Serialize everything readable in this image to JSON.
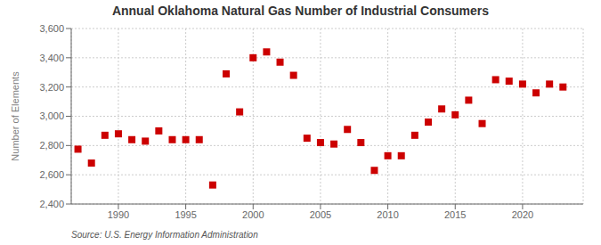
{
  "chart_data": {
    "type": "scatter",
    "title": "Annual Oklahoma Natural Gas Number of Industrial Consumers",
    "y_label": "Number of Elements",
    "annotation": "Source: U.S. Energy Information Administration",
    "x": [
      1987,
      1988,
      1989,
      1990,
      1991,
      1992,
      1993,
      1994,
      1995,
      1996,
      1997,
      1998,
      1999,
      2000,
      2001,
      2002,
      2003,
      2004,
      2005,
      2006,
      2007,
      2008,
      2009,
      2010,
      2011,
      2012,
      2013,
      2014,
      2015,
      2016,
      2017,
      2018,
      2019,
      2020,
      2021,
      2022,
      2023
    ],
    "values": [
      2775,
      2680,
      2870,
      2880,
      2840,
      2830,
      2900,
      2840,
      2840,
      2840,
      2530,
      3290,
      3030,
      3400,
      3440,
      3370,
      3280,
      2850,
      2820,
      2810,
      2910,
      2820,
      2630,
      2730,
      2730,
      2870,
      2960,
      3050,
      3010,
      3110,
      2950,
      3250,
      3240,
      3220,
      3160,
      3220,
      3200
    ],
    "color": "#cc0000",
    "marker": "square",
    "xlim": [
      1986.5,
      2024.5
    ],
    "xticks": [
      1990,
      1995,
      2000,
      2005,
      2010,
      2015,
      2020
    ],
    "ylim": [
      2400,
      3600
    ],
    "yticks": [
      {
        "value": 2400,
        "label": "2,400"
      },
      {
        "value": 2600,
        "label": "2,600"
      },
      {
        "value": 2800,
        "label": "2,800"
      },
      {
        "value": 3000,
        "label": "3,000"
      },
      {
        "value": 3200,
        "label": "3,200"
      },
      {
        "value": 3400,
        "label": "3,400"
      },
      {
        "value": 3600,
        "label": "3,600"
      }
    ],
    "grid": true
  }
}
